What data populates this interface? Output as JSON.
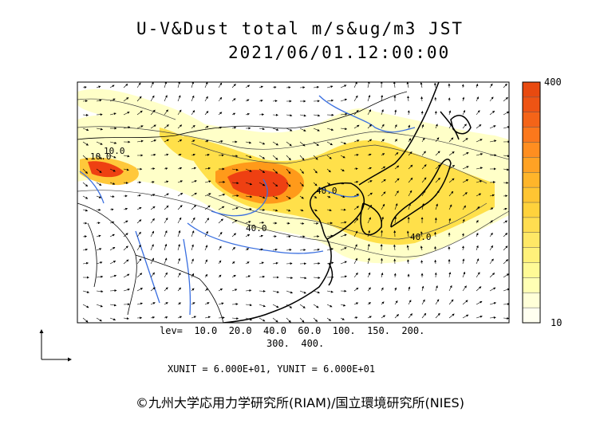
{
  "header": {
    "title": "U-V&Dust total m/s&ug/m3 JST",
    "datetime": "2021/06/01.12:00:00"
  },
  "map": {
    "contour_labels": [
      "40.0",
      "40.0",
      "40.0",
      "10.0",
      "10.0"
    ],
    "colors": {
      "low": "#ffffc8",
      "mid": "#ffe04a",
      "high": "#ff9a1a",
      "peak": "#ee4012",
      "rivers": "#3a6fe0",
      "coast": "#000000"
    }
  },
  "colorbar": {
    "max_label": "400",
    "min_label": "10",
    "levels": 16,
    "colors": [
      "#fffff0",
      "#ffffd8",
      "#ffffb4",
      "#fffa96",
      "#fff17a",
      "#ffe866",
      "#ffdd50",
      "#ffd23c",
      "#ffc532",
      "#ffb52a",
      "#ffa224",
      "#ff8e20",
      "#fb781c",
      "#f46418",
      "#ee5414",
      "#e84a10"
    ]
  },
  "footer": {
    "levels_line1": "lev=  10.0  20.0  40.0  60.0  100.  150.  200.",
    "levels_line2": "300.  400.",
    "units": "XUNIT = 6.000E+01, YUNIT = 6.000E+01",
    "credit": "©九州大学応用力学研究所(RIAM)/国立環境研究所(NIES)"
  }
}
